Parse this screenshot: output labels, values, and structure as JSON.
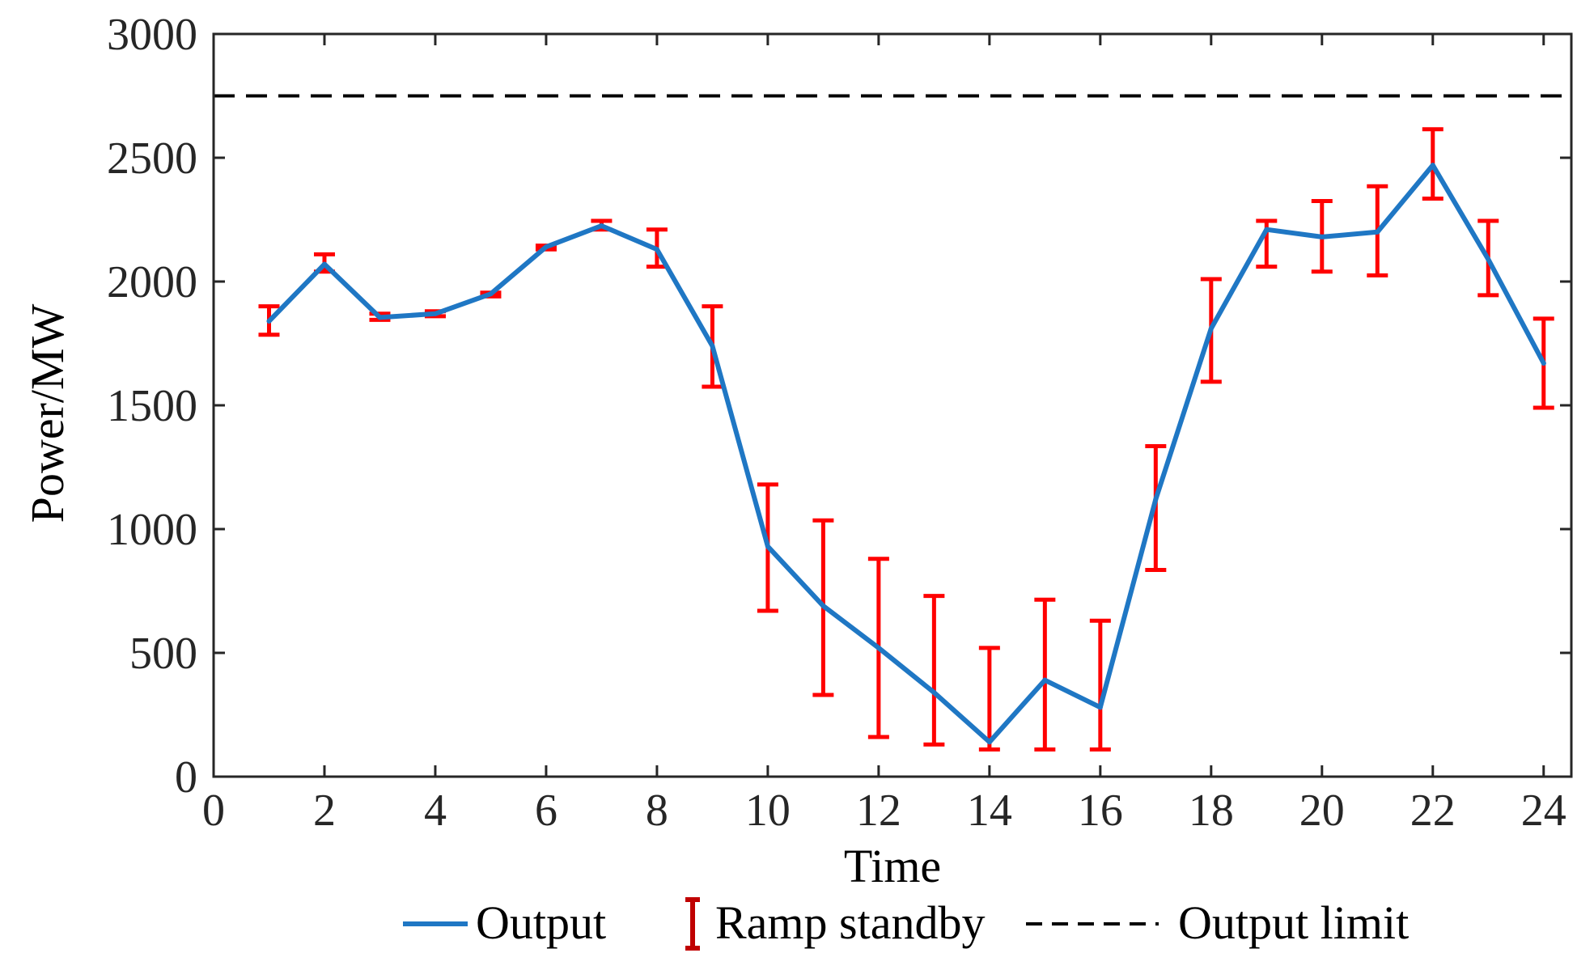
{
  "chart_data": {
    "type": "line",
    "xlabel": "Time",
    "ylabel": "Power/MW",
    "xlim": [
      0,
      24.5
    ],
    "ylim": [
      0,
      3000
    ],
    "xticks": [
      0,
      2,
      4,
      6,
      8,
      10,
      12,
      14,
      16,
      18,
      20,
      22,
      24
    ],
    "yticks": [
      0,
      500,
      1000,
      1500,
      2000,
      2500,
      3000
    ],
    "x": [
      1,
      2,
      3,
      4,
      5,
      6,
      7,
      8,
      9,
      10,
      11,
      12,
      13,
      14,
      15,
      16,
      17,
      18,
      19,
      20,
      21,
      22,
      23,
      24
    ],
    "series": [
      {
        "name": "Output",
        "color": "#1f77c4",
        "values": [
          1840,
          2070,
          1855,
          1870,
          1950,
          2140,
          2225,
          2130,
          1740,
          930,
          690,
          520,
          340,
          140,
          390,
          280,
          1120,
          1810,
          2210,
          2180,
          2200,
          2470,
          2090,
          1670
        ]
      }
    ],
    "error_bars": {
      "name": "Ramp standby",
      "color": "#ff0000",
      "lower": [
        1785,
        2040,
        1845,
        1860,
        1940,
        2130,
        2210,
        2060,
        1575,
        670,
        330,
        160,
        130,
        110,
        110,
        110,
        835,
        1595,
        2060,
        2040,
        2025,
        2335,
        1945,
        1490
      ],
      "upper": [
        1900,
        2110,
        1870,
        1880,
        1955,
        2145,
        2245,
        2210,
        1900,
        1180,
        1035,
        880,
        730,
        520,
        715,
        630,
        1335,
        2010,
        2245,
        2325,
        2385,
        2615,
        2245,
        1850
      ]
    },
    "reference_line": {
      "name": "Output limit",
      "value": 2750,
      "color": "#000000",
      "style": "dashed"
    },
    "grid": false,
    "legend_position": "bottom"
  }
}
